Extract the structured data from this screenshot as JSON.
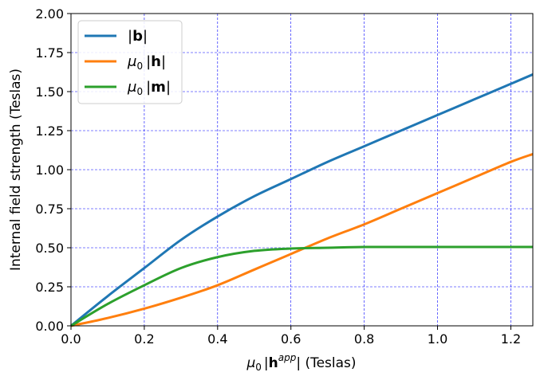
{
  "chart_data": {
    "type": "line",
    "title": "",
    "xlabel": {
      "prefix": "μ",
      "sub": "0",
      "bar": "|",
      "bold": "h",
      "sup": "app",
      "suffix": "|  (Teslas)"
    },
    "ylabel": "Internal field strength (Teslas)",
    "xlim": [
      0,
      1.26
    ],
    "ylim": [
      0,
      2.0
    ],
    "xticks": [
      0.0,
      0.2,
      0.4,
      0.6,
      0.8,
      1.0,
      1.2
    ],
    "xtick_labels": [
      "0.0",
      "0.2",
      "0.4",
      "0.6",
      "0.8",
      "1.0",
      "1.2"
    ],
    "yticks": [
      0.0,
      0.25,
      0.5,
      0.75,
      1.0,
      1.25,
      1.5,
      1.75,
      2.0
    ],
    "ytick_labels": [
      "0.00",
      "0.25",
      "0.50",
      "0.75",
      "1.00",
      "1.25",
      "1.50",
      "1.75",
      "2.00"
    ],
    "grid": true,
    "grid_color": "#0000ff",
    "legend_placement": "top-left",
    "x": [
      0.0,
      0.1,
      0.2,
      0.3,
      0.4,
      0.5,
      0.6,
      0.7,
      0.8,
      0.9,
      1.0,
      1.1,
      1.2,
      1.26
    ],
    "series": [
      {
        "name": {
          "prefix": "",
          "sub": "",
          "bold": "b"
        },
        "color": "#1f77b4",
        "values": [
          0.0,
          0.19,
          0.37,
          0.55,
          0.7,
          0.83,
          0.94,
          1.05,
          1.15,
          1.25,
          1.35,
          1.45,
          1.55,
          1.61
        ]
      },
      {
        "name": {
          "prefix": "μ",
          "sub": "0",
          "bold": "h"
        },
        "color": "#ff7f0e",
        "values": [
          0.0,
          0.05,
          0.11,
          0.18,
          0.26,
          0.36,
          0.46,
          0.56,
          0.65,
          0.75,
          0.85,
          0.95,
          1.05,
          1.1
        ]
      },
      {
        "name": {
          "prefix": "μ",
          "sub": "0",
          "bold": "m"
        },
        "color": "#2ca02c",
        "values": [
          0.0,
          0.14,
          0.26,
          0.37,
          0.44,
          0.48,
          0.495,
          0.5,
          0.505,
          0.505,
          0.505,
          0.505,
          0.505,
          0.505
        ]
      }
    ]
  }
}
